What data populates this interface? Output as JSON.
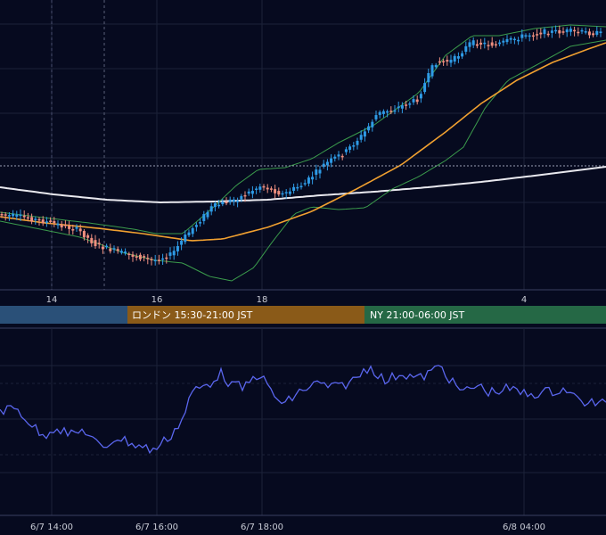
{
  "colors": {
    "background": "#060a1f",
    "grid": "#1c2238",
    "up": "#2e9be6",
    "down": "#ef8f7f",
    "bollinger": "#3b9b4c",
    "ema_orange": "#f0a030",
    "sma_white": "#e8e8ee",
    "rsi_line": "#5a66ee",
    "session_tokyo": "#2a5078",
    "session_london": "#8a5a18",
    "session_ny": "#256845"
  },
  "chart_data": [
    {
      "type": "candlestick",
      "title": "",
      "x_ticks": [
        "14",
        "16",
        "18",
        "4"
      ],
      "x_tick_times": [
        "2024-06-07 14:00",
        "2024-06-07 16:00",
        "2024-06-07 18:00",
        "2024-06-08 04:00"
      ],
      "indicators": [
        "Bollinger Bands",
        "EMA (orange)",
        "SMA (white)"
      ],
      "crosshair_horizontal": true,
      "grid": true
    },
    {
      "type": "line",
      "title": "",
      "x_ticks": [
        "6/7 14:00",
        "6/7 16:00",
        "6/7 18:00",
        "6/8 04:00"
      ],
      "grid": true
    }
  ],
  "sessions": [
    {
      "label": "ロンドン 15:30-21:00 JST",
      "color": "#8a5a18"
    },
    {
      "label": "NY 21:00-06:00 JST",
      "color": "#256845"
    }
  ]
}
